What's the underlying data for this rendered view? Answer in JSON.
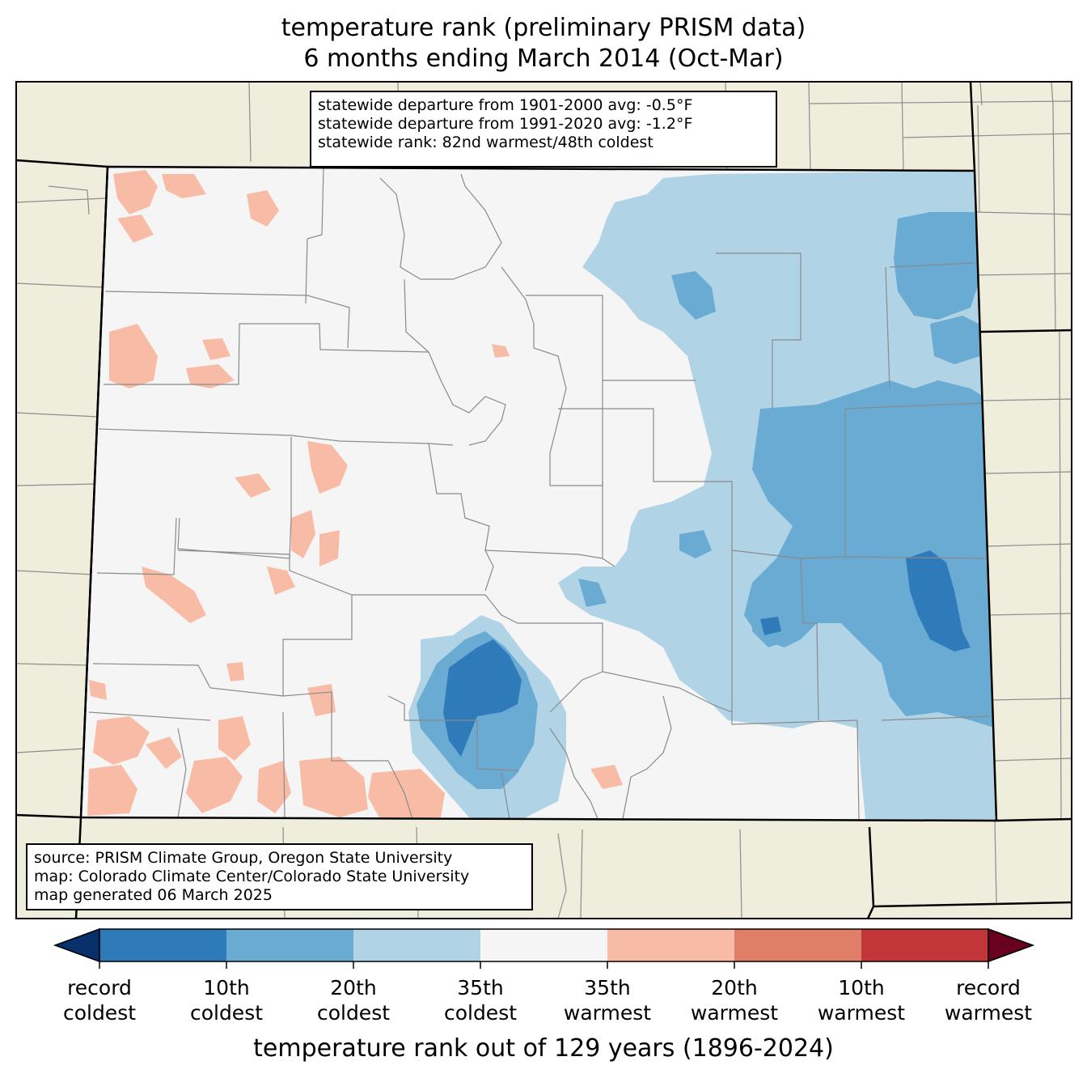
{
  "title_line1": "temperature rank (preliminary PRISM data)",
  "title_line2": "6 months ending March 2014 (Oct-Mar)",
  "info": {
    "line1": "statewide departure from 1901-2000 avg: -0.5°F",
    "line2": "statewide departure from 1991-2020 avg: -1.2°F",
    "line3": "statewide rank: 82nd warmest/48th coldest"
  },
  "source": {
    "line1": "source: PRISM Climate Group, Oregon State University",
    "line2": "map: Colorado Climate Center/Colorado State University",
    "line3": "map generated 06 March 2025"
  },
  "colorbar": {
    "label": "temperature rank out of 129 years (1896-2024)",
    "ticks": [
      {
        "line1": "record",
        "line2": "coldest"
      },
      {
        "line1": "10th",
        "line2": "coldest"
      },
      {
        "line1": "20th",
        "line2": "coldest"
      },
      {
        "line1": "35th",
        "line2": "coldest"
      },
      {
        "line1": "35th",
        "line2": "warmest"
      },
      {
        "line1": "20th",
        "line2": "warmest"
      },
      {
        "line1": "10th",
        "line2": "warmest"
      },
      {
        "line1": "record",
        "line2": "warmest"
      }
    ],
    "colors": {
      "below_record_coldest": "#08306b",
      "record_to_10th_coldest": "#2f7bba",
      "10th_to_20th_coldest": "#69abd2",
      "20th_to_35th_coldest": "#b1d3e6",
      "neutral": "#f5f5f5",
      "35th_to_20th_warmest": "#f8bca6",
      "20th_to_10th_warmest": "#e07e68",
      "10th_to_record_warmest": "#c23639",
      "above_record_warmest": "#6a0020"
    }
  },
  "colors": {
    "background_land": "#efeddc",
    "county_lines": "#808080",
    "state_lines": "#000000"
  }
}
